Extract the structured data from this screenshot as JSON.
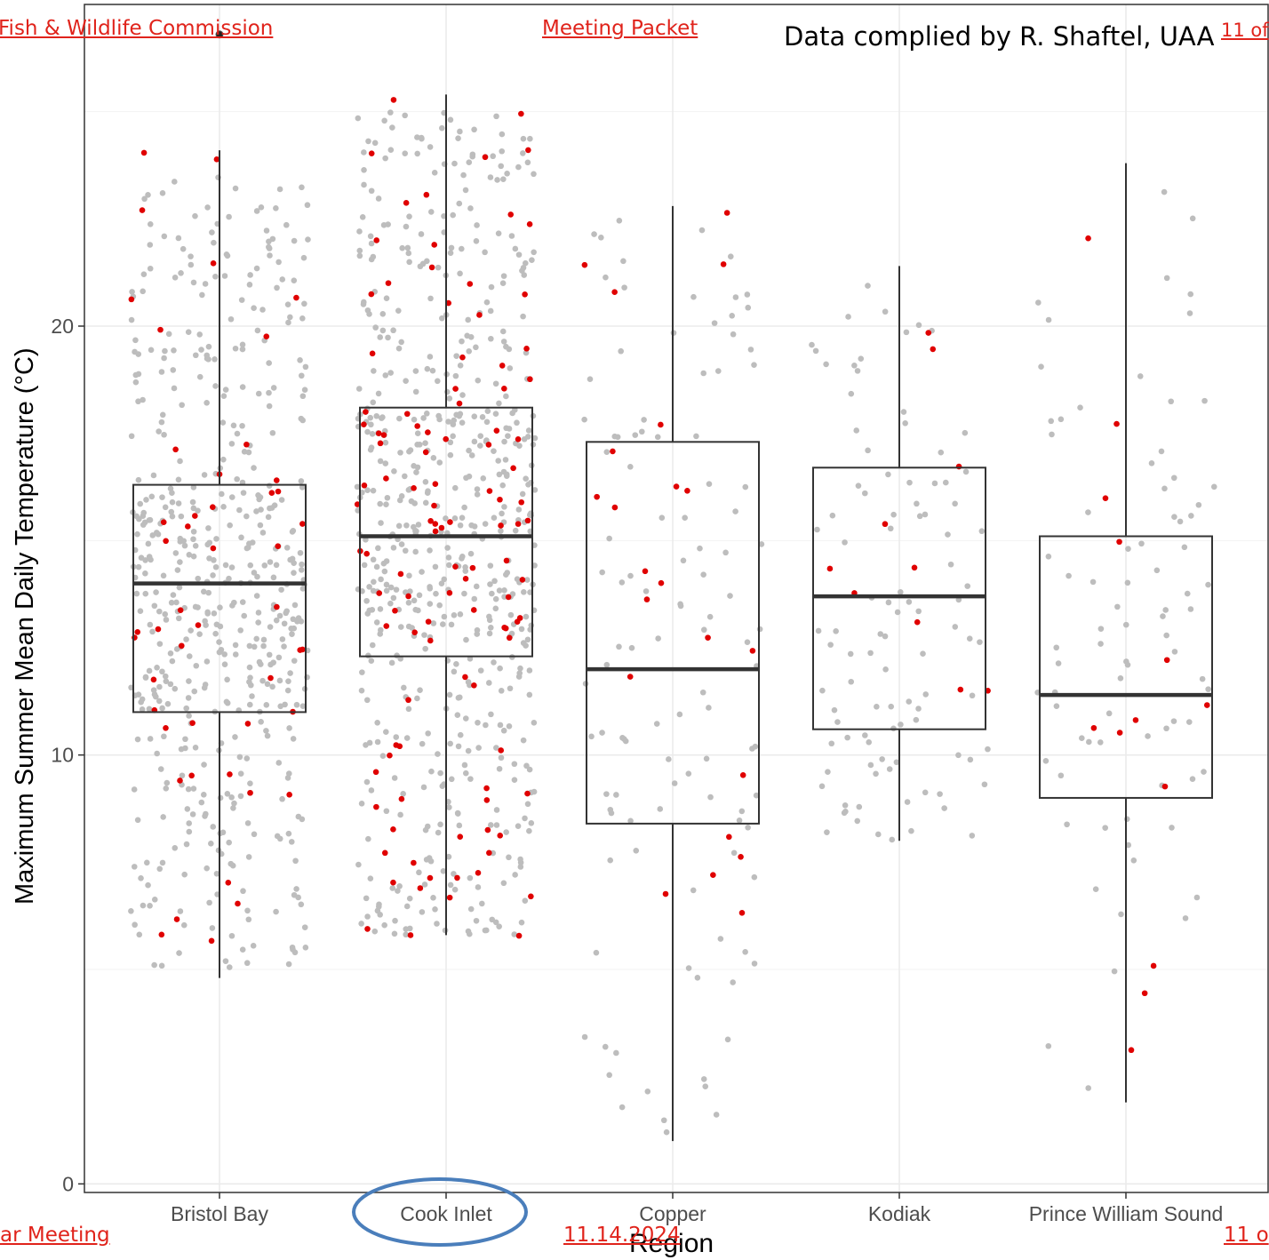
{
  "header": {
    "left_link": "Fish & Wildlife Commission",
    "center_link": "Meeting Packet",
    "right_link": "11 of",
    "credit": "Data complied by R. Shaftel, UAA"
  },
  "footer": {
    "left_link": "ar Meeting",
    "center_link": "11.14.2024",
    "right_link": "11 o"
  },
  "colors": {
    "box_stroke": "#333333",
    "median": "#333333",
    "point_gray": "#bdbdbd",
    "point_red": "#e00000",
    "grid_major": "#ebebeb",
    "grid_minor": "#f3f3f3",
    "panel_border": "#333333",
    "annotation_ellipse": "#4a7ebb"
  },
  "chart_data": {
    "type": "box",
    "xlabel": "Region",
    "ylabel": "Maximum Summer Mean Daily Temperature (°C)",
    "categories": [
      "Bristol Bay",
      "Cook Inlet",
      "Copper",
      "Kodiak",
      "Prince William Sound"
    ],
    "ylim": [
      -0.2,
      27.5
    ],
    "yticks": [
      0,
      10,
      20
    ],
    "grid": true,
    "highlighted_category": "Cook Inlet",
    "boxes": [
      {
        "category": "Bristol Bay",
        "whisker_low": 4.8,
        "q1": 11.0,
        "median": 14.0,
        "q3": 16.3,
        "whisker_high": 24.1,
        "outliers": [
          26.8
        ]
      },
      {
        "category": "Cook Inlet",
        "whisker_low": 5.8,
        "q1": 12.3,
        "median": 15.1,
        "q3": 18.1,
        "whisker_high": 25.4,
        "outliers": []
      },
      {
        "category": "Copper",
        "whisker_low": 1.0,
        "q1": 8.4,
        "median": 12.0,
        "q3": 17.3,
        "whisker_high": 22.8,
        "outliers": []
      },
      {
        "category": "Kodiak",
        "whisker_low": 8.0,
        "q1": 10.6,
        "median": 13.7,
        "q3": 16.7,
        "whisker_high": 21.4,
        "outliers": []
      },
      {
        "category": "Prince William Sound",
        "whisker_low": 1.9,
        "q1": 9.0,
        "median": 11.4,
        "q3": 15.1,
        "whisker_high": 23.8,
        "outliers": []
      }
    ],
    "point_counts": {
      "gray": [
        520,
        600,
        110,
        100,
        80
      ],
      "red": [
        48,
        110,
        22,
        10,
        13
      ]
    },
    "point_spread": {
      "gray_range": [
        [
          5.0,
          23.5
        ],
        [
          5.8,
          25.0
        ],
        [
          1.0,
          22.5
        ],
        [
          8.0,
          21.0
        ],
        [
          2.0,
          23.5
        ]
      ],
      "red_range": [
        [
          5.6,
          24.5
        ],
        [
          5.6,
          25.3
        ],
        [
          5.8,
          23.0
        ],
        [
          11.5,
          21.3
        ],
        [
          2.5,
          22.5
        ]
      ]
    }
  }
}
